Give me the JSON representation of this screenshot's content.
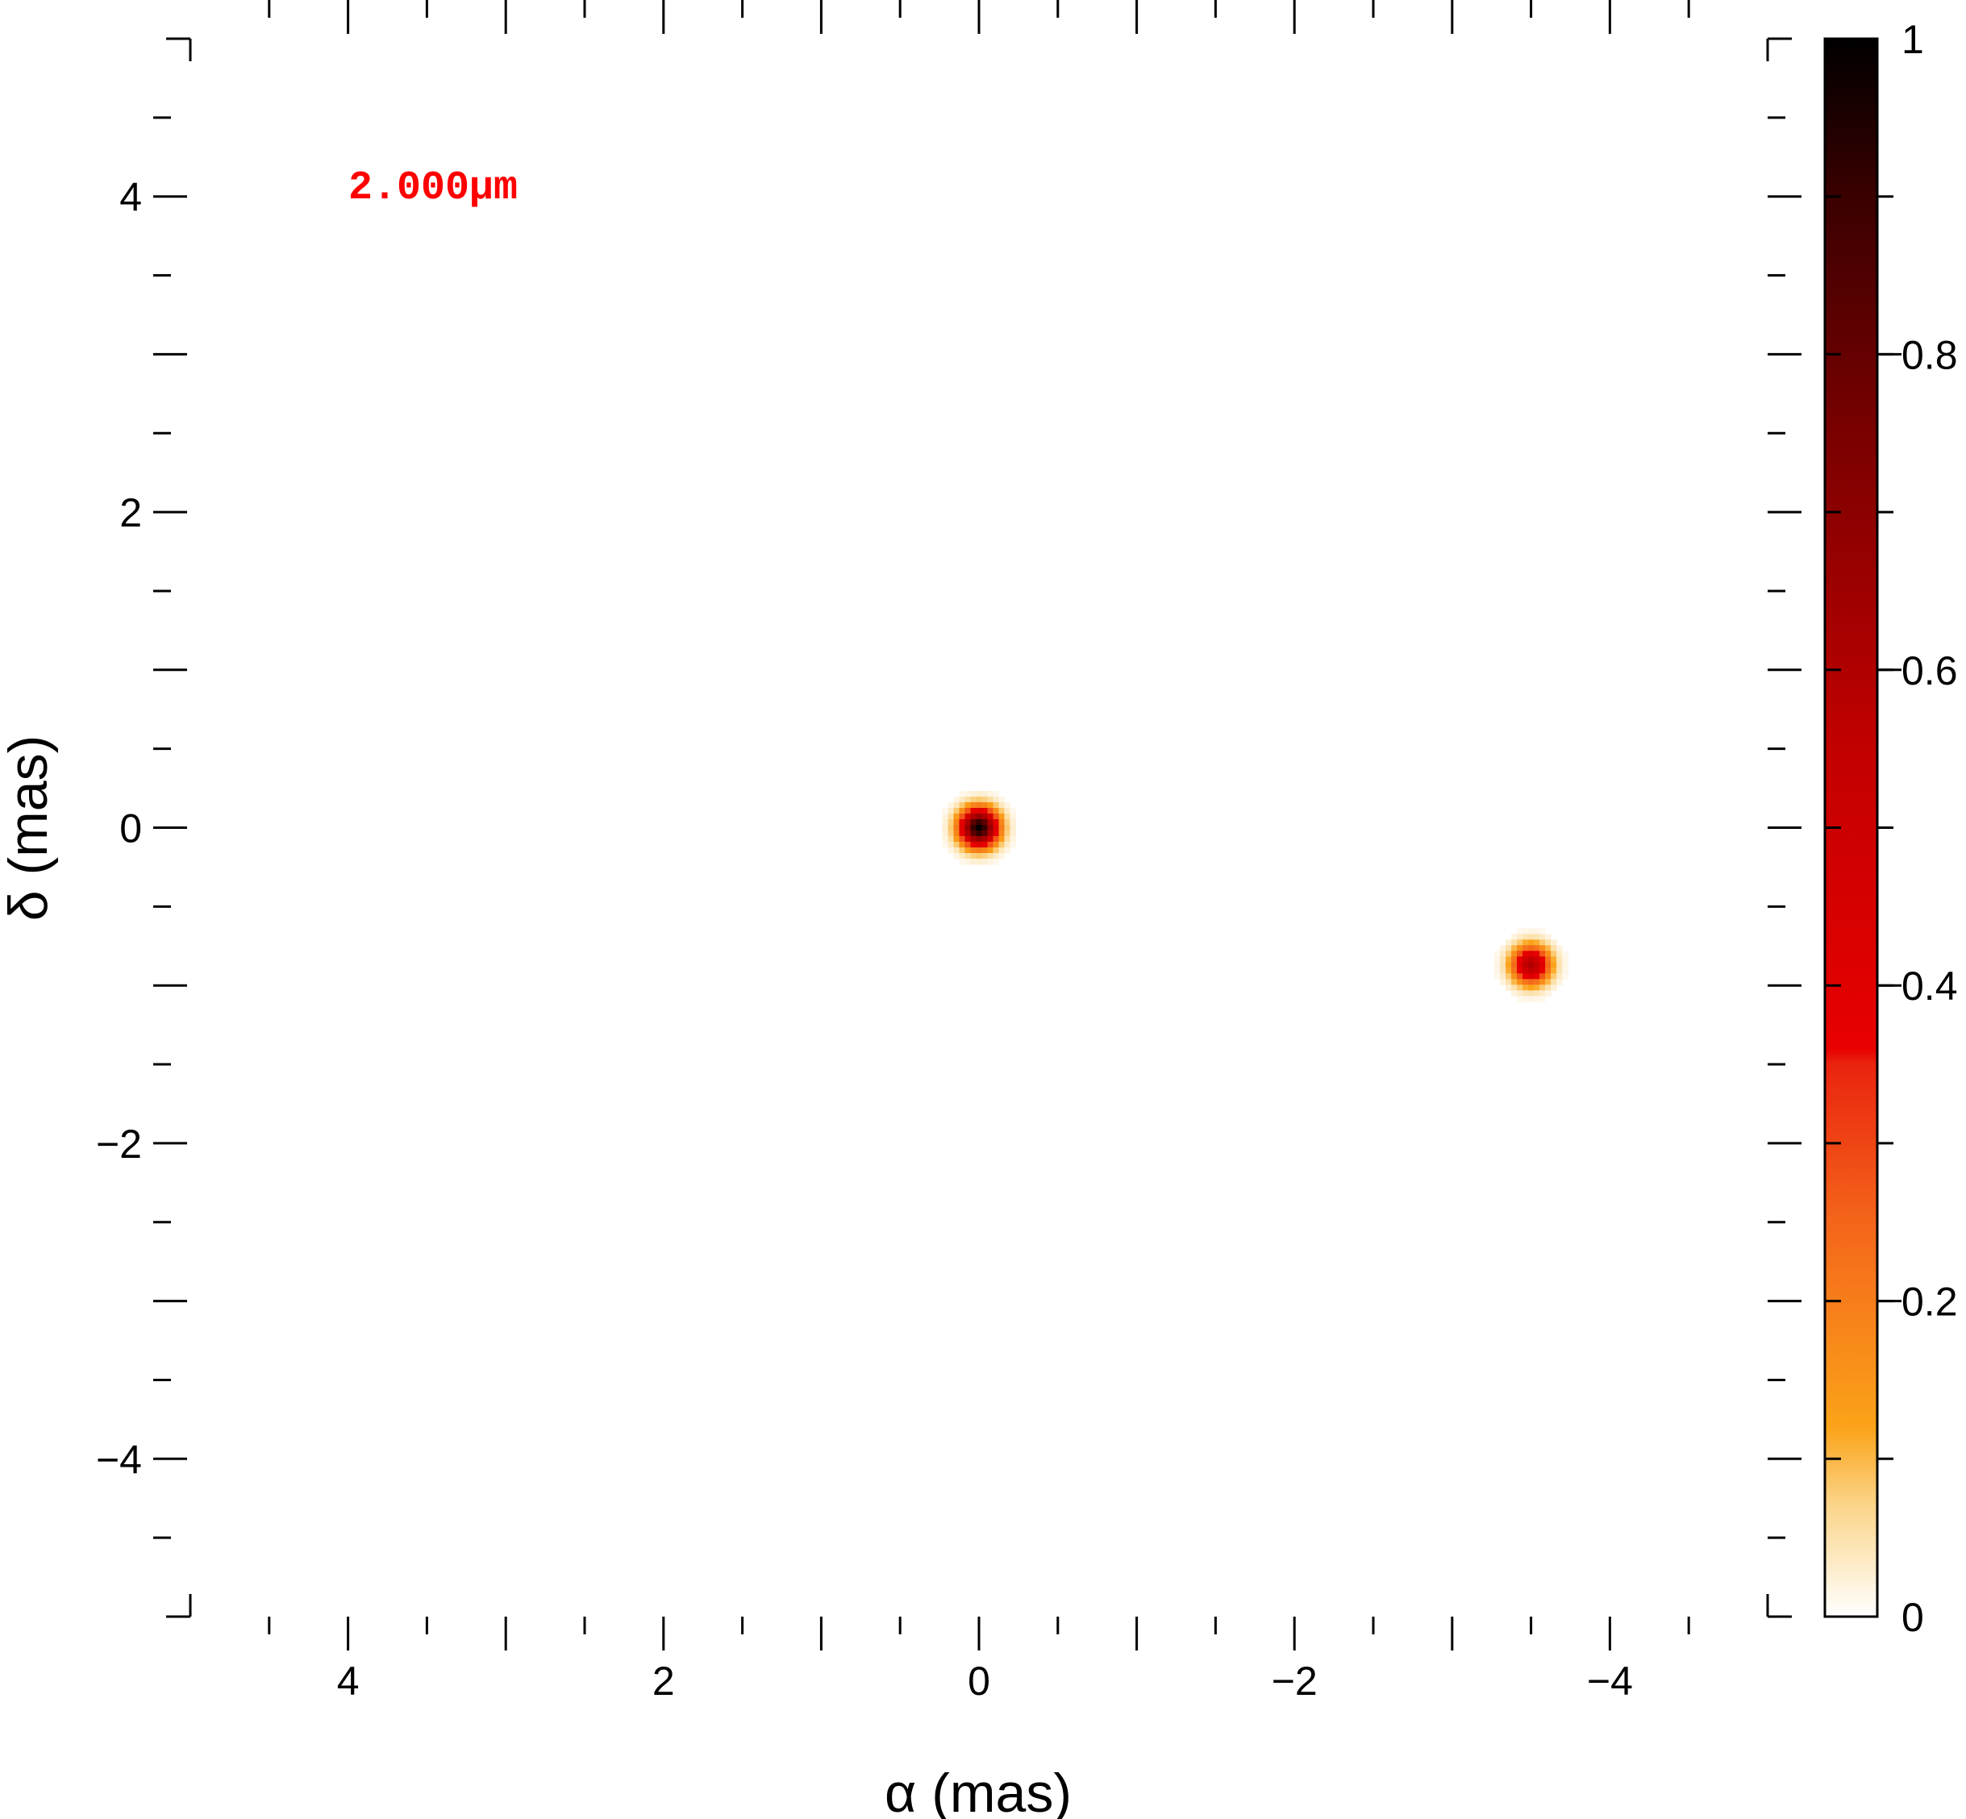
{
  "chart_data": {
    "type": "heatmap",
    "title": "",
    "annotation": "2.000µm",
    "annotation_color": "#ff0000",
    "xlabel": "α (mas)",
    "ylabel": "δ (mas)",
    "xlim": [
      5,
      -5
    ],
    "ylim": [
      -5,
      5
    ],
    "x_ticks": [
      4,
      2,
      0,
      -2,
      -4
    ],
    "x_tick_labels": [
      "4",
      "2",
      "0",
      "−2",
      "−4"
    ],
    "y_ticks": [
      4,
      2,
      0,
      -2,
      -4
    ],
    "y_tick_labels": [
      "4",
      "2",
      "0",
      "−2",
      "−4"
    ],
    "minor_tick_step": 0.5,
    "grid": false,
    "sources": [
      {
        "x": 0.0,
        "y": 0.0,
        "peak": 1.0,
        "sigma": 0.08
      },
      {
        "x": -3.5,
        "y": -0.87,
        "peak": 0.6,
        "sigma": 0.08
      }
    ],
    "colorbar": {
      "range": [
        0,
        1
      ],
      "ticks": [
        0,
        0.2,
        0.4,
        0.6,
        0.8,
        1
      ],
      "tick_labels": [
        "0",
        "0.2",
        "0.4",
        "0.6",
        "0.8",
        "1"
      ],
      "placement": "right",
      "colormap": [
        [
          0.0,
          "#ffffff"
        ],
        [
          0.07,
          "#fbd58a"
        ],
        [
          0.12,
          "#fba319"
        ],
        [
          0.25,
          "#f4651a"
        ],
        [
          0.35,
          "#ea240f"
        ],
        [
          0.36,
          "#e80000"
        ],
        [
          0.55,
          "#c20000"
        ],
        [
          0.75,
          "#7a0000"
        ],
        [
          0.9,
          "#3a0000"
        ],
        [
          1.0,
          "#000000"
        ]
      ]
    }
  }
}
